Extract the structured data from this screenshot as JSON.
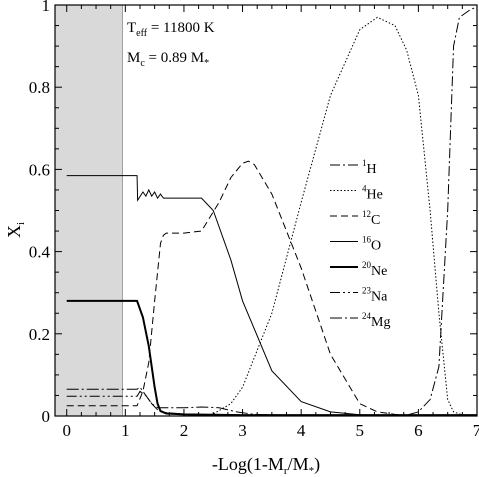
{
  "chart_data": {
    "type": "line",
    "xlabel": "-Log(1-M_r/M_*)",
    "ylabel": "X_i",
    "xlim": [
      -0.2,
      7
    ],
    "ylim": [
      0,
      1
    ],
    "x_ticks": [
      "0",
      "1",
      "2",
      "3",
      "4",
      "5",
      "6",
      "7"
    ],
    "y_ticks": [
      "0",
      "0.2",
      "0.4",
      "0.6",
      "0.8",
      "1"
    ],
    "annotations": {
      "teff_label": "T",
      "teff_sub": "eff",
      "teff_value": " = 11800 K",
      "mc_label": "M",
      "mc_sub": "c",
      "mc_value": "= 0.89 M",
      "mc_star": "*"
    },
    "shaded_region": {
      "x_from": -0.2,
      "x_to": 0.95,
      "color": "#d9d9d9"
    },
    "legend": [
      {
        "mass": "1",
        "element": "H",
        "dash": "10,3,2,3"
      },
      {
        "mass": "4",
        "element": "He",
        "dash": "1.5,2"
      },
      {
        "mass": "12",
        "element": "C",
        "dash": "7,4"
      },
      {
        "mass": "16",
        "element": "O",
        "dash": ""
      },
      {
        "mass": "20",
        "element": "Ne",
        "dash": "",
        "width": 2
      },
      {
        "mass": "23",
        "element": "Na",
        "dash": "10,3,2,3,2,3"
      },
      {
        "mass": "24",
        "element": "Mg",
        "dash": "12,3,2,3"
      }
    ],
    "series": [
      {
        "name": "1H",
        "x": [
          0,
          5.6,
          5.8,
          6.0,
          6.2,
          6.35,
          6.5,
          6.6,
          6.7,
          6.9,
          7.0
        ],
        "values": [
          0,
          0,
          0.002,
          0.01,
          0.04,
          0.12,
          0.5,
          0.9,
          0.97,
          0.99,
          0.995
        ]
      },
      {
        "name": "4He",
        "x": [
          0,
          2.3,
          2.5,
          2.8,
          3.0,
          3.5,
          4.0,
          4.5,
          5.0,
          5.3,
          5.6,
          5.8,
          6.0,
          6.2,
          6.35,
          6.5,
          6.6,
          6.8,
          7.0
        ],
        "values": [
          0,
          0,
          0.005,
          0.03,
          0.07,
          0.25,
          0.52,
          0.78,
          0.94,
          0.97,
          0.95,
          0.89,
          0.78,
          0.5,
          0.25,
          0.04,
          0.01,
          0,
          0
        ]
      },
      {
        "name": "12C",
        "x": [
          0,
          1.2,
          1.3,
          1.4,
          1.5,
          1.6,
          1.65,
          1.7,
          2.0,
          2.3,
          2.6,
          2.8,
          3.0,
          3.1,
          3.2,
          3.5,
          4.0,
          4.5,
          5.0,
          5.3,
          5.6,
          5.8,
          6.0,
          6.3,
          7.0
        ],
        "values": [
          0.025,
          0.025,
          0.06,
          0.13,
          0.28,
          0.42,
          0.44,
          0.445,
          0.445,
          0.45,
          0.52,
          0.58,
          0.615,
          0.62,
          0.612,
          0.54,
          0.36,
          0.15,
          0.03,
          0.01,
          0.004,
          0.002,
          0.001,
          0,
          0
        ]
      },
      {
        "name": "16O",
        "x": [
          0,
          1.2,
          1.21,
          1.3,
          1.35,
          1.4,
          1.45,
          1.5,
          1.55,
          1.6,
          1.65,
          1.7,
          2.0,
          2.3,
          2.5,
          2.8,
          3.0,
          3.5,
          4.0,
          4.5,
          5.0,
          5.5,
          6.0,
          7.0
        ],
        "values": [
          0.585,
          0.585,
          0.525,
          0.545,
          0.535,
          0.55,
          0.535,
          0.545,
          0.53,
          0.54,
          0.53,
          0.53,
          0.53,
          0.53,
          0.5,
          0.38,
          0.28,
          0.11,
          0.035,
          0.01,
          0.003,
          0.001,
          0,
          0
        ]
      },
      {
        "name": "20Ne",
        "x": [
          0,
          1.2,
          1.3,
          1.4,
          1.45,
          1.5,
          1.55,
          1.6,
          1.7,
          2.0,
          3.0,
          7.0
        ],
        "values": [
          0.28,
          0.28,
          0.24,
          0.17,
          0.12,
          0.07,
          0.03,
          0.012,
          0.006,
          0.004,
          0.002,
          0.002
        ]
      },
      {
        "name": "23Na",
        "x": [
          0,
          1.2,
          1.25,
          1.35,
          1.45,
          1.55,
          1.7,
          2.0,
          2.5,
          3.0,
          7.0
        ],
        "values": [
          0.048,
          0.048,
          0.06,
          0.05,
          0.03,
          0.015,
          0.008,
          0.005,
          0.003,
          0.001,
          0
        ]
      },
      {
        "name": "24Mg",
        "x": [
          0,
          1.2,
          1.25,
          1.35,
          1.45,
          1.55,
          1.7,
          2.0,
          2.3,
          2.6,
          2.9,
          3.2,
          4.0,
          7.0
        ],
        "values": [
          0.065,
          0.065,
          0.07,
          0.05,
          0.03,
          0.02,
          0.02,
          0.02,
          0.022,
          0.02,
          0.01,
          0.004,
          0.001,
          0
        ]
      }
    ]
  }
}
